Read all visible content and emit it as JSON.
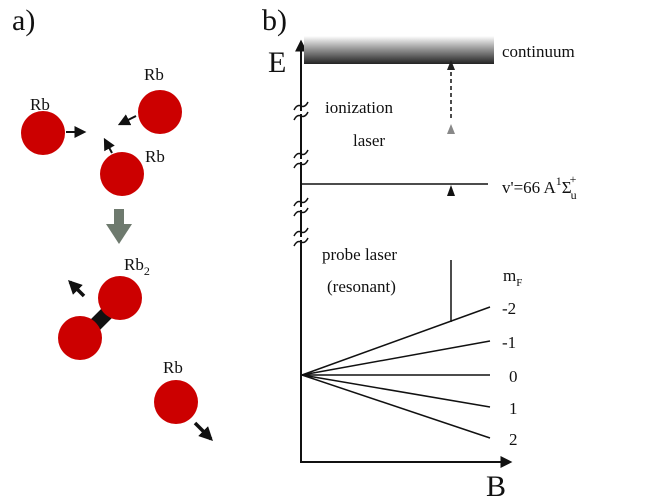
{
  "panel_a": {
    "label": "a)",
    "atom_top_left": "Rb",
    "atom_top_right": "Rb",
    "atom_mid": "Rb",
    "molecule": "Rb",
    "molecule_sub": "2",
    "atom_bottom": "Rb"
  },
  "panel_b": {
    "label": "b)",
    "energy_axis": "E",
    "field_axis": "B",
    "continuum": "continuum",
    "ionization_line1": "ionization",
    "ionization_line2": "laser",
    "probe_line1": "probe laser",
    "probe_line2": "(resonant)",
    "state_prefix": "v'=66  A",
    "state_sup": "1",
    "state_sigma": "Σ",
    "state_sub": "u",
    "state_sup2": "+",
    "mf_label": "m",
    "mf_sub": "F",
    "mf_values": [
      "-2",
      "-1",
      "0",
      "1",
      "2"
    ]
  },
  "colors": {
    "atom": "#cc0000",
    "reaction_arrow": "#6e7a6e",
    "line": "#111111"
  }
}
